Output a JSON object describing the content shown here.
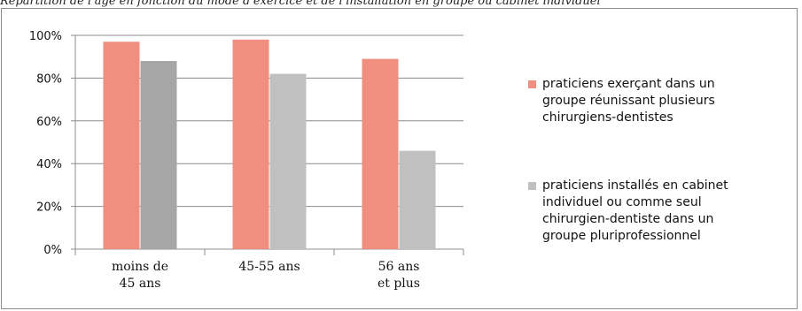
{
  "top_text": "Répartition de l'âge en fonction du mode d'exercice et de l'installation en groupe ou cabinet individuel",
  "chart_data": {
    "type": "bar",
    "categories": [
      [
        "moins de",
        "45 ans"
      ],
      [
        "45-55 ans"
      ],
      [
        "56 ans",
        "et plus"
      ]
    ],
    "series": [
      {
        "name": "praticiens exerçant dans un groupe réunissant plusieurs chirurgiens-dentistes",
        "values": [
          97,
          98,
          89
        ],
        "color": "#f08e80"
      },
      {
        "name": "praticiens installés en cabinet individuel ou comme seul chirurgien-dentiste dans un groupe pluriprofessionnel",
        "values": [
          88,
          82,
          46
        ],
        "colors": [
          "#a6a6a6",
          "#c0c0c0",
          "#c0c0c0"
        ]
      }
    ],
    "ylim": [
      0,
      100
    ],
    "yticks": [
      "0%",
      "20%",
      "40%",
      "60%",
      "80%",
      "100%"
    ],
    "grid": true,
    "legend_position": "right",
    "legend": [
      {
        "lines": [
          "praticiens exerçant dans un",
          "groupe réunissant plusieurs",
          "chirurgiens-dentistes"
        ]
      },
      {
        "lines": [
          "praticiens installés en cabinet",
          "individuel ou comme seul",
          "chirurgien-dentiste dans un",
          "groupe pluriprofessionnel"
        ]
      }
    ]
  }
}
